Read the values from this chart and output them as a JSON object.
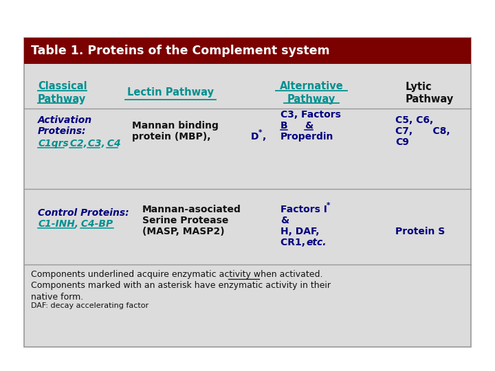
{
  "title": "Table 1. Proteins of the Complement system",
  "title_bg": "#7B0000",
  "title_color": "#FFFFFF",
  "table_bg": "#DCDCDC",
  "border_color": "#999999",
  "teal_color": "#009090",
  "dark_blue": "#000080",
  "black": "#111111",
  "footer_text_lines": [
    "Components underlined acquire enzymatic activity when activated.",
    "Components marked with an asterisk have enzymatic activity in their",
    "native form.",
    "DAF: decay accelerating factor"
  ],
  "fig_w": 7.2,
  "fig_h": 5.4,
  "dpi": 100
}
